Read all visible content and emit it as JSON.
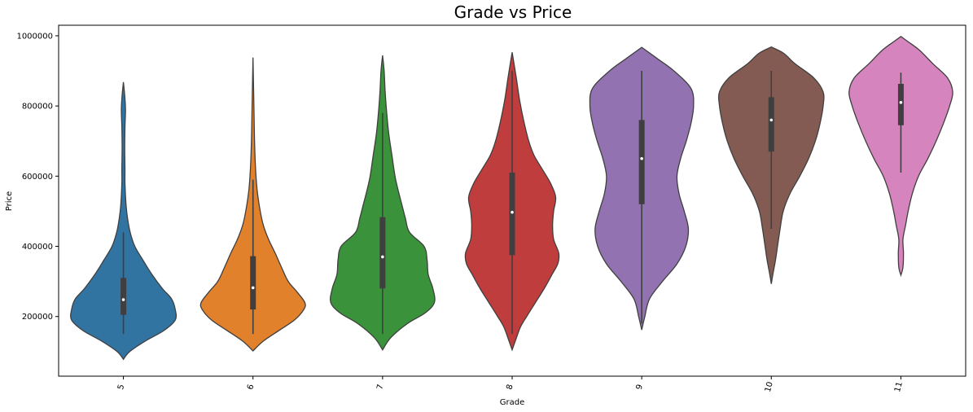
{
  "chart_data": {
    "type": "violin",
    "title": "Grade vs Price",
    "xlabel": "Grade",
    "ylabel": "Price",
    "ylim": [
      30000,
      1030000
    ],
    "y_ticks": [
      200000,
      400000,
      600000,
      800000,
      1000000
    ],
    "y_tick_labels": [
      "200000",
      "400000",
      "600000",
      "800000",
      "1000000"
    ],
    "grid": false,
    "categories": [
      "5",
      "6",
      "7",
      "8",
      "9",
      "10",
      "11"
    ],
    "colors": [
      "#3274a1",
      "#e1812c",
      "#3a923a",
      "#c03d3e",
      "#9372b2",
      "#845b53",
      "#d684bd"
    ],
    "box": [
      {
        "q1": 205000,
        "median": 248000,
        "q3": 310000,
        "whisker_low": 150000,
        "whisker_high": 440000
      },
      {
        "q1": 220000,
        "median": 282000,
        "q3": 372000,
        "whisker_low": 150000,
        "whisker_high": 590000
      },
      {
        "q1": 280000,
        "median": 370000,
        "q3": 483000,
        "whisker_low": 150000,
        "whisker_high": 780000
      },
      {
        "q1": 375000,
        "median": 497000,
        "q3": 610000,
        "whisker_low": 150000,
        "whisker_high": 900000
      },
      {
        "q1": 520000,
        "median": 650000,
        "q3": 760000,
        "whisker_low": 180000,
        "whisker_high": 900000
      },
      {
        "q1": 670000,
        "median": 760000,
        "q3": 825000,
        "whisker_low": 450000,
        "whisker_high": 900000
      },
      {
        "q1": 745000,
        "median": 810000,
        "q3": 863000,
        "whisker_low": 610000,
        "whisker_high": 895000
      }
    ],
    "density_profiles": [
      [
        [
          78000,
          0.0
        ],
        [
          100000,
          0.12
        ],
        [
          130000,
          0.42
        ],
        [
          160000,
          0.78
        ],
        [
          190000,
          1.0
        ],
        [
          220000,
          1.0
        ],
        [
          250000,
          0.93
        ],
        [
          280000,
          0.75
        ],
        [
          320000,
          0.55
        ],
        [
          360000,
          0.38
        ],
        [
          400000,
          0.22
        ],
        [
          440000,
          0.13
        ],
        [
          480000,
          0.08
        ],
        [
          520000,
          0.05
        ],
        [
          580000,
          0.03
        ],
        [
          620000,
          0.03
        ],
        [
          680000,
          0.025
        ],
        [
          740000,
          0.03
        ],
        [
          790000,
          0.04
        ],
        [
          830000,
          0.025
        ],
        [
          868000,
          0.0
        ]
      ],
      [
        [
          102000,
          0.0
        ],
        [
          130000,
          0.2
        ],
        [
          160000,
          0.5
        ],
        [
          190000,
          0.8
        ],
        [
          220000,
          0.98
        ],
        [
          240000,
          1.0
        ],
        [
          270000,
          0.85
        ],
        [
          300000,
          0.68
        ],
        [
          340000,
          0.55
        ],
        [
          380000,
          0.43
        ],
        [
          420000,
          0.3
        ],
        [
          460000,
          0.2
        ],
        [
          500000,
          0.14
        ],
        [
          560000,
          0.08
        ],
        [
          620000,
          0.05
        ],
        [
          700000,
          0.03
        ],
        [
          780000,
          0.02
        ],
        [
          860000,
          0.01
        ],
        [
          938000,
          0.0
        ]
      ],
      [
        [
          105000,
          0.0
        ],
        [
          140000,
          0.16
        ],
        [
          180000,
          0.48
        ],
        [
          210000,
          0.82
        ],
        [
          240000,
          1.0
        ],
        [
          280000,
          0.97
        ],
        [
          320000,
          0.88
        ],
        [
          360000,
          0.86
        ],
        [
          400000,
          0.8
        ],
        [
          440000,
          0.52
        ],
        [
          480000,
          0.44
        ],
        [
          520000,
          0.37
        ],
        [
          560000,
          0.3
        ],
        [
          600000,
          0.24
        ],
        [
          660000,
          0.18
        ],
        [
          720000,
          0.12
        ],
        [
          780000,
          0.08
        ],
        [
          840000,
          0.05
        ],
        [
          900000,
          0.03
        ],
        [
          944000,
          0.0
        ]
      ],
      [
        [
          105000,
          0.0
        ],
        [
          130000,
          0.06
        ],
        [
          170000,
          0.16
        ],
        [
          200000,
          0.28
        ],
        [
          240000,
          0.45
        ],
        [
          280000,
          0.62
        ],
        [
          320000,
          0.77
        ],
        [
          350000,
          0.88
        ],
        [
          380000,
          0.9
        ],
        [
          420000,
          0.8
        ],
        [
          460000,
          0.78
        ],
        [
          500000,
          0.8
        ],
        [
          540000,
          0.84
        ],
        [
          580000,
          0.74
        ],
        [
          620000,
          0.58
        ],
        [
          660000,
          0.42
        ],
        [
          700000,
          0.32
        ],
        [
          760000,
          0.22
        ],
        [
          820000,
          0.14
        ],
        [
          880000,
          0.08
        ],
        [
          953000,
          0.0
        ]
      ],
      [
        [
          162000,
          0.0
        ],
        [
          200000,
          0.06
        ],
        [
          250000,
          0.15
        ],
        [
          300000,
          0.4
        ],
        [
          350000,
          0.68
        ],
        [
          400000,
          0.85
        ],
        [
          450000,
          0.9
        ],
        [
          500000,
          0.82
        ],
        [
          550000,
          0.72
        ],
        [
          600000,
          0.68
        ],
        [
          650000,
          0.75
        ],
        [
          700000,
          0.86
        ],
        [
          750000,
          0.95
        ],
        [
          800000,
          1.0
        ],
        [
          850000,
          0.95
        ],
        [
          900000,
          0.62
        ],
        [
          935000,
          0.3
        ],
        [
          967000,
          0.0
        ]
      ],
      [
        [
          293000,
          0.0
        ],
        [
          320000,
          0.03
        ],
        [
          360000,
          0.08
        ],
        [
          400000,
          0.12
        ],
        [
          450000,
          0.17
        ],
        [
          500000,
          0.23
        ],
        [
          550000,
          0.36
        ],
        [
          600000,
          0.55
        ],
        [
          650000,
          0.72
        ],
        [
          700000,
          0.85
        ],
        [
          750000,
          0.94
        ],
        [
          800000,
          1.0
        ],
        [
          840000,
          1.0
        ],
        [
          880000,
          0.82
        ],
        [
          920000,
          0.46
        ],
        [
          950000,
          0.24
        ],
        [
          968000,
          0.0
        ]
      ],
      [
        [
          318000,
          0.0
        ],
        [
          340000,
          0.04
        ],
        [
          380000,
          0.05
        ],
        [
          420000,
          0.04
        ],
        [
          460000,
          0.09
        ],
        [
          500000,
          0.14
        ],
        [
          550000,
          0.22
        ],
        [
          600000,
          0.34
        ],
        [
          650000,
          0.52
        ],
        [
          700000,
          0.68
        ],
        [
          750000,
          0.82
        ],
        [
          800000,
          0.94
        ],
        [
          840000,
          1.0
        ],
        [
          880000,
          0.9
        ],
        [
          920000,
          0.62
        ],
        [
          960000,
          0.35
        ],
        [
          985000,
          0.12
        ],
        [
          998000,
          0.0
        ]
      ]
    ]
  }
}
